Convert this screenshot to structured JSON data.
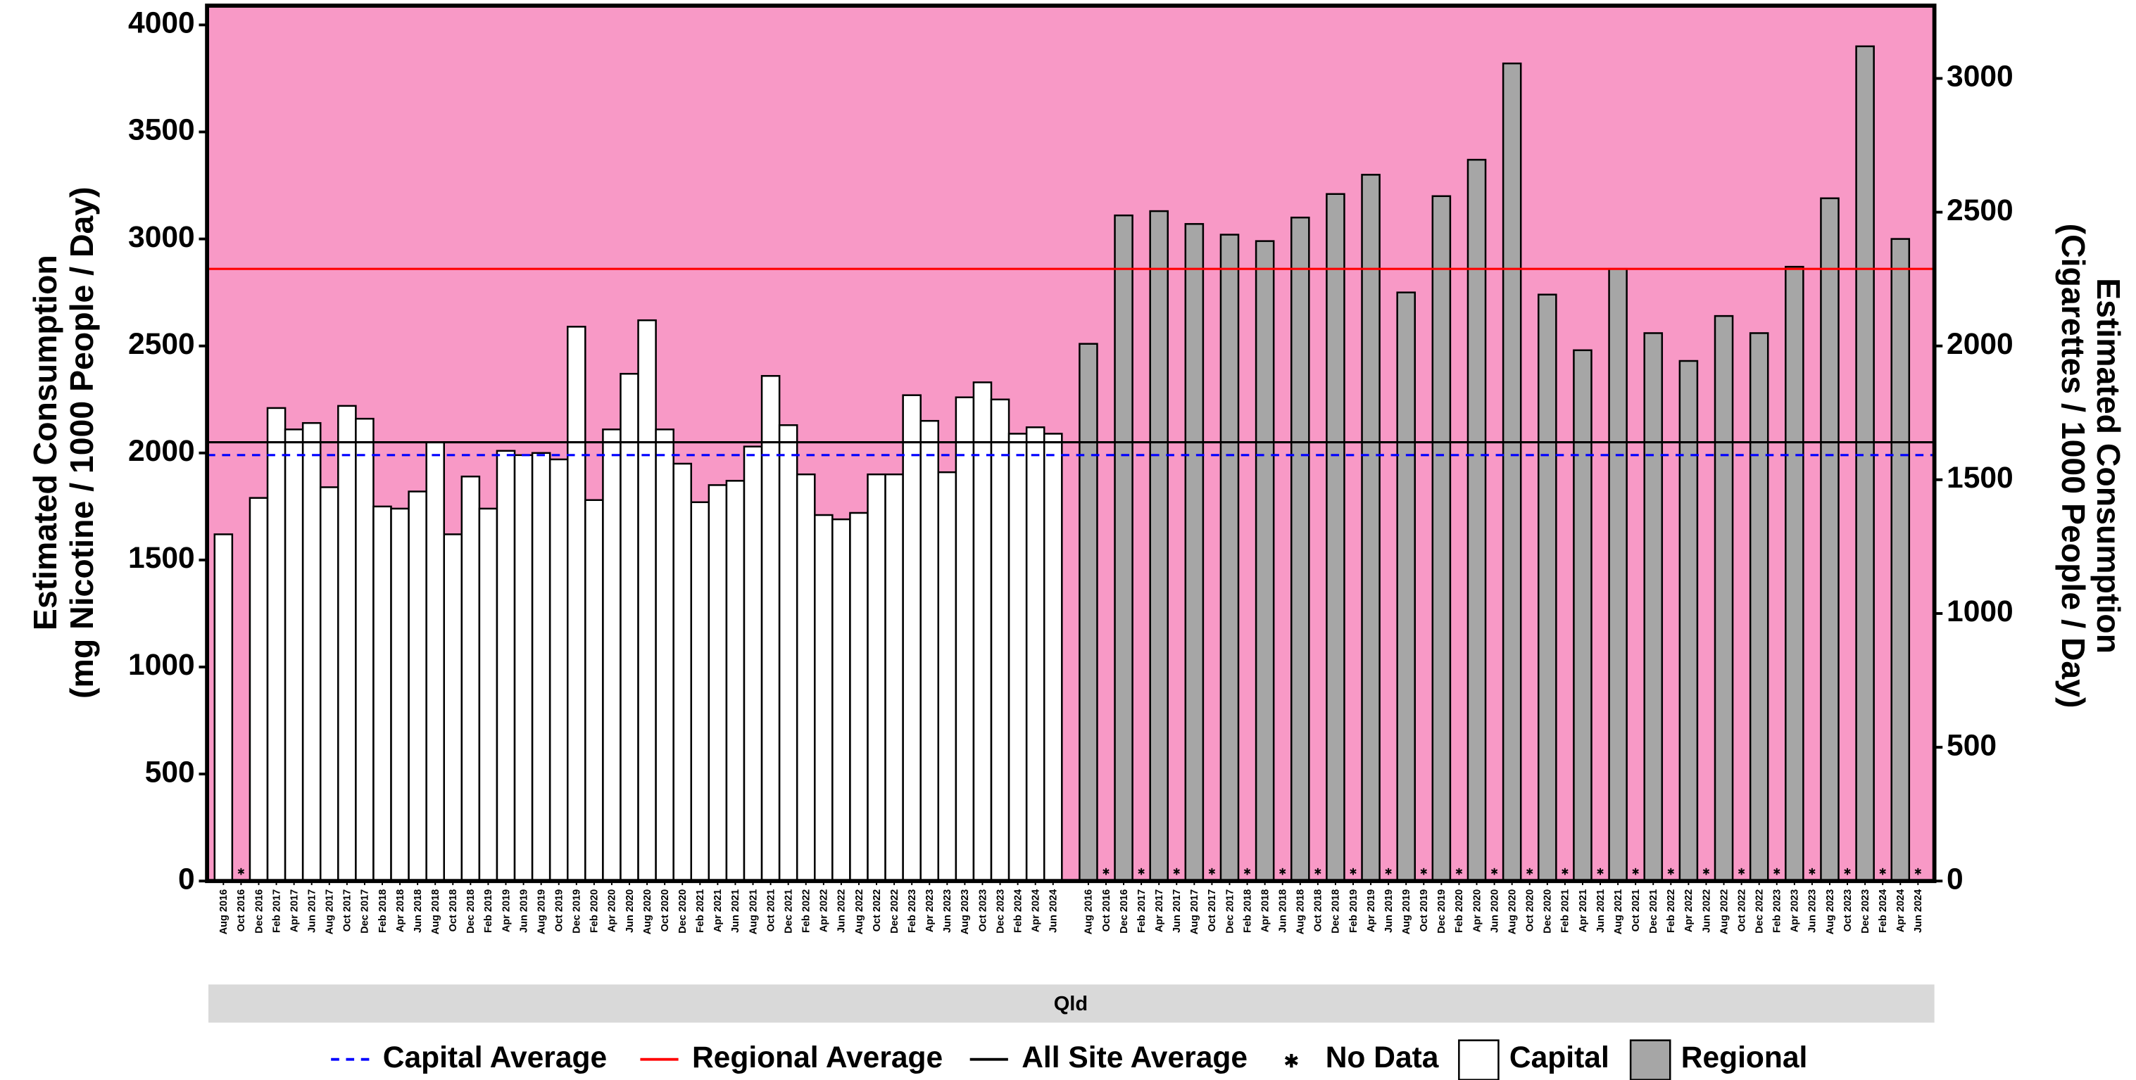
{
  "chart_data": {
    "type": "bar",
    "ylabel": [
      "Estimated Consumption",
      "(mg Nicotine / 1000 People / Day)"
    ],
    "y2label": [
      "Estimated Consumption",
      "(Cigarettes / 1000 People / Day)"
    ],
    "facet": "Qld",
    "background": "#f899c6",
    "categories": [
      "Aug 2016",
      "Oct 2016",
      "Dec 2016",
      "Feb 2017",
      "Apr 2017",
      "Jun 2017",
      "Aug 2017",
      "Oct 2017",
      "Dec 2017",
      "Feb 2018",
      "Apr 2018",
      "Jun 2018",
      "Aug 2018",
      "Oct 2018",
      "Dec 2018",
      "Feb 2019",
      "Apr 2019",
      "Jun 2019",
      "Aug 2019",
      "Oct 2019",
      "Dec 2019",
      "Feb 2020",
      "Apr 2020",
      "Jun 2020",
      "Aug 2020",
      "Oct 2020",
      "Dec 2020",
      "Feb 2021",
      "Apr 2021",
      "Jun 2021",
      "Aug 2021",
      "Oct 2021",
      "Dec 2021",
      "Feb 2022",
      "Apr 2022",
      "Jun 2022",
      "Aug 2022",
      "Oct 2022",
      "Dec 2022",
      "Feb 2023",
      "Apr 2023",
      "Jun 2023",
      "Aug 2023",
      "Oct 2023",
      "Dec 2023",
      "Feb 2024",
      "Apr 2024",
      "Jun 2024",
      null,
      "Aug 2016",
      "Oct 2016",
      "Dec 2016",
      "Feb 2017",
      "Apr 2017",
      "Jun 2017",
      "Aug 2017",
      "Oct 2017",
      "Dec 2017",
      "Feb 2018",
      "Apr 2018",
      "Jun 2018",
      "Aug 2018",
      "Oct 2018",
      "Dec 2018",
      "Feb 2019",
      "Apr 2019",
      "Jun 2019",
      "Aug 2019",
      "Oct 2019",
      "Dec 2019",
      "Feb 2020",
      "Apr 2020",
      "Jun 2020",
      "Aug 2020",
      "Oct 2020",
      "Dec 2020",
      "Feb 2021",
      "Apr 2021",
      "Jun 2021",
      "Aug 2021",
      "Oct 2021",
      "Dec 2021",
      "Feb 2022",
      "Apr 2022",
      "Jun 2022",
      "Aug 2022",
      "Oct 2022",
      "Dec 2022",
      "Feb 2023",
      "Apr 2023",
      "Jun 2023",
      "Aug 2023",
      "Oct 2023",
      "Dec 2023",
      "Feb 2024",
      "Apr 2024",
      "Jun 2024"
    ],
    "series": [
      {
        "name": "Capital",
        "color": "#ffffff",
        "values": [
          1620,
          null,
          1790,
          2210,
          2110,
          2140,
          1840,
          2220,
          2160,
          1750,
          1740,
          1820,
          2050,
          1620,
          1890,
          1740,
          2010,
          1990,
          2000,
          1970,
          2590,
          1780,
          2110,
          2370,
          2620,
          2110,
          1950,
          1770,
          1850,
          1870,
          2030,
          2360,
          2130,
          1900,
          1710,
          1690,
          1720,
          1900,
          1900,
          2270,
          2150,
          1910,
          2260,
          2330,
          2250,
          2090,
          2120,
          2090,
          null,
          null,
          null,
          null,
          null,
          null,
          null,
          null,
          null,
          null,
          null,
          null,
          null,
          null,
          null,
          null,
          null,
          null,
          null,
          null,
          null,
          null,
          null,
          null,
          null,
          null,
          null,
          null,
          null,
          null,
          null,
          null,
          null,
          null,
          null,
          null,
          null,
          null,
          null,
          null,
          null,
          null,
          null,
          null,
          null,
          null,
          null,
          null,
          null
        ]
      },
      {
        "name": "Regional",
        "color": "#a6a6a6",
        "values": [
          null,
          null,
          null,
          null,
          null,
          null,
          null,
          null,
          null,
          null,
          null,
          null,
          null,
          null,
          null,
          null,
          null,
          null,
          null,
          null,
          null,
          null,
          null,
          null,
          null,
          null,
          null,
          null,
          null,
          null,
          null,
          null,
          null,
          null,
          null,
          null,
          null,
          null,
          null,
          null,
          null,
          null,
          null,
          null,
          null,
          null,
          null,
          null,
          null,
          2510,
          null,
          3110,
          null,
          3130,
          null,
          3070,
          null,
          3020,
          null,
          2990,
          null,
          3100,
          null,
          3210,
          null,
          3300,
          null,
          2750,
          null,
          3200,
          null,
          3370,
          null,
          3820,
          null,
          2740,
          null,
          2480,
          null,
          2860,
          null,
          2560,
          null,
          2430,
          null,
          2640,
          null,
          2560,
          null,
          2870,
          null,
          3190,
          null,
          3900,
          null,
          3000,
          null
        ]
      }
    ],
    "reference_lines": [
      {
        "name": "Capital Average",
        "value": 1990,
        "color": "#0000ff",
        "dash": true
      },
      {
        "name": "Regional Average",
        "value": 2860,
        "color": "#ff0000",
        "dash": false
      },
      {
        "name": "All Site Average",
        "value": 2050,
        "color": "#000000",
        "dash": false
      }
    ],
    "missing_label": "No Data",
    "ylim": [
      0,
      4090
    ],
    "yticks": [
      0,
      500,
      1000,
      1500,
      2000,
      2500,
      3000,
      3500,
      4000
    ],
    "y2lim": [
      0,
      3272
    ],
    "y2ticks": [
      0,
      500,
      1000,
      1500,
      2000,
      2500,
      3000
    ]
  }
}
